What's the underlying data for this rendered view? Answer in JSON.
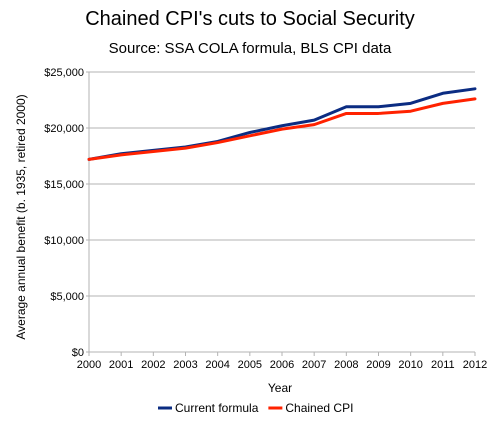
{
  "chart_data": {
    "type": "line",
    "title": "Chained CPI's cuts to Social Security",
    "subtitle": "Source: SSA COLA formula, BLS CPI data",
    "xlabel": "Year",
    "ylabel": "Average annual benefit (b. 1935, retired 2000)",
    "x": [
      "2000",
      "2001",
      "2002",
      "2003",
      "2004",
      "2005",
      "2006",
      "2007",
      "2008",
      "2009",
      "2010",
      "2011",
      "2012"
    ],
    "ylim": [
      0,
      25000
    ],
    "y_ticks": [
      0,
      5000,
      10000,
      15000,
      20000,
      25000
    ],
    "y_tick_labels": [
      "$0",
      "$5,000",
      "$10,000",
      "$15,000",
      "$20,000",
      "$25,000"
    ],
    "grid": "horizontal",
    "legend_position": "bottom",
    "series": [
      {
        "name": "Current formula",
        "color": "#0b2c82",
        "values": [
          17200,
          17700,
          18000,
          18300,
          18800,
          19600,
          20200,
          20700,
          21900,
          21900,
          22200,
          23100,
          23500
        ]
      },
      {
        "name": "Chained CPI",
        "color": "#ff2200",
        "values": [
          17200,
          17600,
          17900,
          18200,
          18700,
          19300,
          19900,
          20300,
          21300,
          21300,
          21500,
          22200,
          22600
        ]
      }
    ]
  }
}
